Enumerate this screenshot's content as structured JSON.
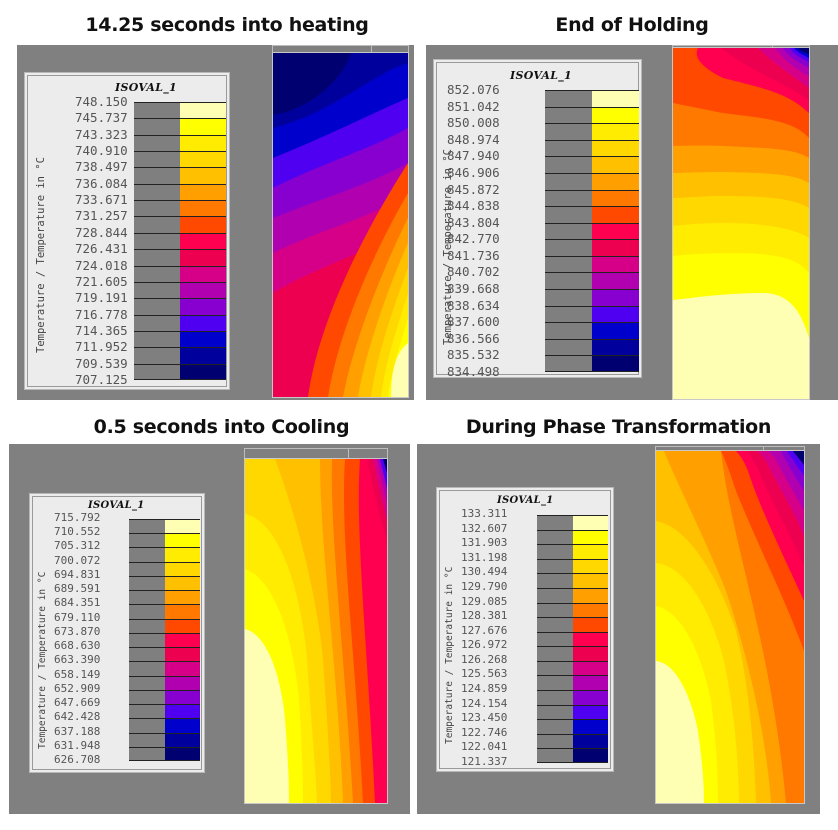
{
  "figure": {
    "panels": [
      {
        "title": "14.25 seconds into heating"
      },
      {
        "title": "End of Holding"
      },
      {
        "title": "0.5 seconds into Cooling"
      },
      {
        "title": "During Phase Transformation"
      }
    ]
  },
  "legend_common": {
    "title": "ISOVAL_1",
    "axis_label": "Temperature / Temperature in °C",
    "colors": [
      "#ffffb4",
      "#ffff00",
      "#ffec00",
      "#ffd800",
      "#ffc000",
      "#ffa000",
      "#ff7800",
      "#ff4800",
      "#ff0050",
      "#ee0050",
      "#d60088",
      "#b000b0",
      "#8800d0",
      "#5000f0",
      "#0000cc",
      "#00009c",
      "#000070"
    ]
  },
  "chart_data": [
    {
      "type": "heatmap",
      "title": "14.25 seconds into heating",
      "legend_title": "ISOVAL_1",
      "colorbar_label": "Temperature / Temperature in °C",
      "levels": [
        "748.150",
        "745.737",
        "743.323",
        "740.910",
        "738.497",
        "736.084",
        "733.671",
        "731.257",
        "728.844",
        "726.431",
        "724.018",
        "721.605",
        "719.191",
        "716.778",
        "714.365",
        "711.952",
        "709.539",
        "707.125"
      ],
      "range": [
        707.125,
        748.15
      ],
      "pattern": "coldest (dark navy) at top-left, hottest (pale yellow) at bottom-right corner"
    },
    {
      "type": "heatmap",
      "title": "End of Holding",
      "legend_title": "ISOVAL_1",
      "colorbar_label": "Temperature / Temperature in °C",
      "levels": [
        "852.076",
        "851.042",
        "850.008",
        "848.974",
        "847.940",
        "846.906",
        "845.872",
        "844.838",
        "843.804",
        "842.770",
        "841.736",
        "840.702",
        "839.668",
        "838.634",
        "837.600",
        "836.566",
        "835.532",
        "834.498"
      ],
      "range": [
        834.498,
        852.076
      ],
      "pattern": "coldest (navy) at top-right corner, mostly horizontal bands, hottest (pale yellow) across bottom"
    },
    {
      "type": "heatmap",
      "title": "0.5 seconds into Cooling",
      "legend_title": "ISOVAL_1",
      "colorbar_label": "Temperature / Temperature in °C",
      "levels": [
        "715.792",
        "710.552",
        "705.312",
        "700.072",
        "694.831",
        "689.591",
        "684.351",
        "679.110",
        "673.870",
        "668.630",
        "663.390",
        "658.149",
        "652.909",
        "647.669",
        "642.428",
        "637.188",
        "631.948",
        "626.708"
      ],
      "range": [
        626.708,
        715.792
      ],
      "pattern": "coldest (navy) at top-right corner, mostly vertical bands, hottest (pale yellow) at bottom-left"
    },
    {
      "type": "heatmap",
      "title": "During Phase Transformation",
      "legend_title": "ISOVAL_1",
      "colorbar_label": "Temperature / Temperature in °C",
      "levels": [
        "133.311",
        "132.607",
        "131.903",
        "131.198",
        "130.494",
        "129.790",
        "129.085",
        "128.381",
        "127.676",
        "126.972",
        "126.268",
        "125.563",
        "124.859",
        "124.154",
        "123.450",
        "122.746",
        "122.041",
        "121.337"
      ],
      "range": [
        121.337,
        133.311
      ],
      "pattern": "coldest (navy) at top-right corner, curved vertical bands, hottest (pale yellow) at bottom-left"
    }
  ]
}
